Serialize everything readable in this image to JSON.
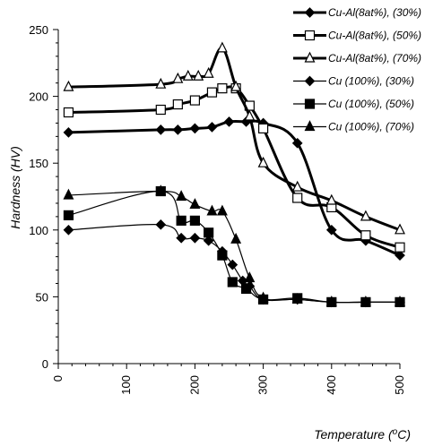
{
  "chart_data": {
    "type": "line",
    "xlabel": "Temperature (",
    "xlabel_sup": "o",
    "xlabel_unit": "C)",
    "ylabel": "Hardness (HV)",
    "xlim": [
      0,
      500
    ],
    "ylim": [
      0,
      250
    ],
    "xticks": [
      "0",
      "100",
      "200",
      "300",
      "400",
      "500"
    ],
    "yticks": [
      "0",
      "50",
      "100",
      "150",
      "200",
      "250"
    ],
    "grid": false,
    "legend_position": "top-right",
    "series": [
      {
        "name": "Cu-Al(8at%), (30%)",
        "marker": "diamond-filled",
        "line_width": 3,
        "x": [
          15,
          150,
          175,
          200,
          225,
          250,
          275,
          300,
          350,
          400,
          450,
          500
        ],
        "y": [
          173,
          175,
          175,
          176,
          177,
          181,
          181,
          180,
          165,
          100,
          92,
          81
        ]
      },
      {
        "name": "Cu-Al(8at%), (50%)",
        "marker": "square-open",
        "line_width": 3,
        "x": [
          15,
          150,
          175,
          200,
          225,
          240,
          260,
          280,
          300,
          350,
          400,
          450,
          500
        ],
        "y": [
          188,
          190,
          194,
          197,
          203,
          206,
          206,
          193,
          176,
          124,
          117,
          96,
          87
        ]
      },
      {
        "name": "Cu-Al(8at%), (70%)",
        "marker": "triangle-open",
        "line_width": 3,
        "x": [
          15,
          150,
          175,
          190,
          205,
          220,
          240,
          260,
          280,
          300,
          350,
          400,
          450,
          500
        ],
        "y": [
          207,
          209,
          213,
          215,
          215,
          217,
          236,
          207,
          185,
          150,
          132,
          122,
          110,
          100
        ]
      },
      {
        "name": "Cu (100%),   (30%)",
        "marker": "diamond-filled",
        "line_width": 1.2,
        "x": [
          15,
          150,
          180,
          200,
          220,
          240,
          255,
          270,
          280,
          300,
          350,
          400,
          450,
          500
        ],
        "y": [
          100,
          104,
          94,
          94,
          92,
          84,
          74,
          62,
          58,
          48,
          48,
          46,
          46,
          46
        ]
      },
      {
        "name": "Cu (100%),   (50%)",
        "marker": "square-filled",
        "line_width": 1.2,
        "x": [
          15,
          150,
          180,
          200,
          220,
          240,
          255,
          275,
          300,
          350,
          400,
          450,
          500
        ],
        "y": [
          111,
          129,
          107,
          107,
          98,
          81,
          61,
          56,
          48,
          49,
          46,
          46,
          46
        ]
      },
      {
        "name": "Cu (100%),   (70%)",
        "marker": "triangle-filled",
        "line_width": 1.2,
        "x": [
          15,
          150,
          180,
          200,
          225,
          240,
          260,
          280,
          300,
          350,
          400,
          450,
          500
        ],
        "y": [
          126,
          129,
          125,
          119,
          114,
          114,
          93,
          64,
          49,
          48,
          46,
          46,
          46
        ]
      }
    ]
  }
}
